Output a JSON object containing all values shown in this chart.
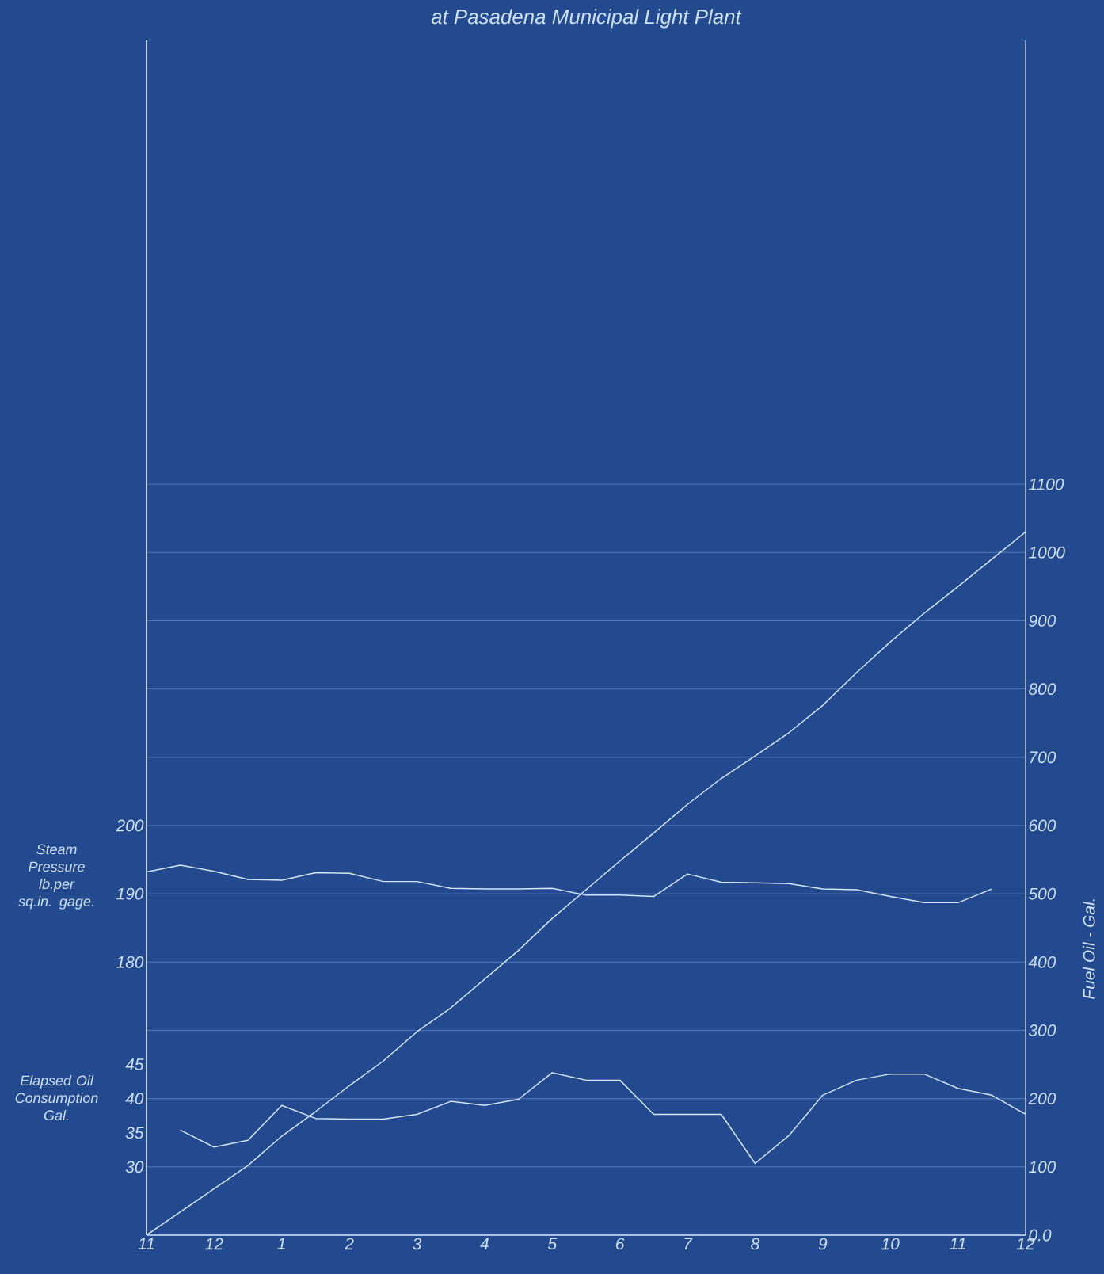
{
  "chart_data": {
    "type": "line",
    "title": "at Pasadena Municipal Light Plant",
    "ylabel": "Steam Pressure lb.per sq.in. gage.",
    "y2label": "Fuel Oil - Gal.",
    "y3label": "Elapsed Oil Consumption Gal.",
    "categories": [
      "11",
      null,
      "12",
      null,
      "1",
      null,
      "2",
      null,
      "3",
      null,
      "4",
      null,
      "5",
      null,
      "6",
      null,
      "7",
      null,
      "8",
      null,
      "9",
      null,
      "10",
      null,
      "11",
      null,
      "12"
    ],
    "ylim": [
      140,
      315
    ],
    "yticks": [
      180,
      190,
      200
    ],
    "y2lim": [
      0,
      1750
    ],
    "y2ticks": [
      {
        "value": 0,
        "label": "0.0"
      },
      100,
      200,
      300,
      400,
      500,
      600,
      700,
      800,
      900,
      1000,
      1100
    ],
    "y3lim": [
      20,
      195
    ],
    "y3ticks": [
      30,
      35,
      40,
      45
    ],
    "grid": true,
    "line_style": "solid",
    "series": [
      {
        "axis": "y",
        "color": "#d2e6f5",
        "values": [
          193.2,
          194.2,
          193.3,
          192.1,
          192.0,
          193.1,
          193.0,
          191.8,
          191.8,
          190.8,
          190.7,
          190.7,
          190.8,
          189.8,
          189.8,
          189.6,
          192.9,
          191.7,
          191.6,
          191.5,
          190.7,
          190.6,
          189.6,
          188.7,
          188.7,
          190.7,
          null
        ]
      },
      {
        "axis": "y3",
        "color": "#d2e6f5",
        "values": [
          null,
          35.4,
          32.9,
          33.9,
          39.0,
          37.1,
          37.0,
          37.0,
          37.7,
          39.6,
          39.0,
          39.9,
          43.8,
          42.7,
          42.7,
          37.7,
          37.7,
          37.7,
          30.5,
          34.6,
          40.5,
          42.7,
          43.6,
          43.6,
          41.5,
          40.5,
          37.7
        ]
      },
      {
        "axis": "y2",
        "color": "#d2e6f5",
        "values": [
          0,
          34,
          68,
          102,
          145,
          181,
          219,
          255,
          298,
          333,
          375,
          417,
          464,
          506,
          548,
          589,
          631,
          669,
          702,
          736,
          776,
          824,
          869,
          911,
          950,
          990,
          1030
        ]
      }
    ]
  }
}
